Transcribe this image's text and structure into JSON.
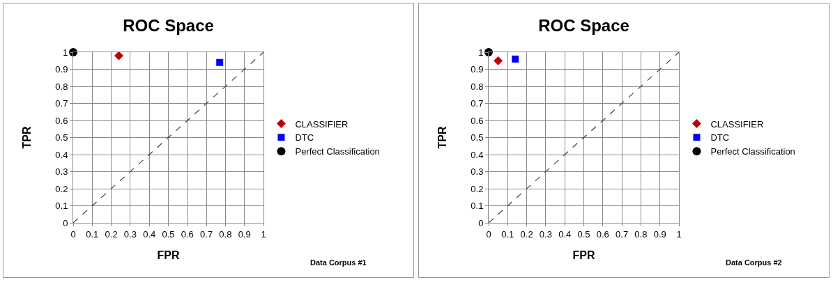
{
  "chart_data": [
    {
      "type": "scatter",
      "title": "ROC Space",
      "xlabel": "FPR",
      "ylabel": "TPR",
      "xlim": [
        0,
        1
      ],
      "ylim": [
        0,
        1
      ],
      "xticks": [
        0,
        0.1,
        0.2,
        0.3,
        0.4,
        0.5,
        0.6,
        0.7,
        0.8,
        0.9,
        1
      ],
      "yticks": [
        0,
        0.1,
        0.2,
        0.3,
        0.4,
        0.5,
        0.6,
        0.7,
        0.8,
        0.9,
        1
      ],
      "grid": true,
      "legend": "right",
      "annotations": [
        "Data Corpus #1"
      ],
      "series": [
        {
          "name": "CLASSIFIER",
          "color": "#c00000",
          "marker": "diamond",
          "x": [
            0.24
          ],
          "values": [
            0.98
          ]
        },
        {
          "name": "DTC",
          "color": "#0000ff",
          "marker": "square",
          "x": [
            0.77
          ],
          "values": [
            0.94
          ]
        },
        {
          "name": "Perfect Classification",
          "color": "#000000",
          "marker": "circle",
          "x": [
            0
          ],
          "values": [
            1
          ]
        },
        {
          "type": "line",
          "color": "#404040",
          "marker": "none",
          "line_style": "dashed",
          "x": [
            0,
            1
          ],
          "values": [
            0,
            1
          ]
        }
      ]
    },
    {
      "type": "scatter",
      "title": "ROC Space",
      "xlabel": "FPR",
      "ylabel": "TPR",
      "xlim": [
        0,
        1
      ],
      "ylim": [
        0,
        1
      ],
      "xticks": [
        0,
        0.1,
        0.2,
        0.3,
        0.4,
        0.5,
        0.6,
        0.7,
        0.8,
        0.9,
        1
      ],
      "yticks": [
        0,
        0.1,
        0.2,
        0.3,
        0.4,
        0.5,
        0.6,
        0.7,
        0.8,
        0.9,
        1
      ],
      "grid": true,
      "legend": "right",
      "annotations": [
        "Data Corpus #2"
      ],
      "series": [
        {
          "name": "CLASSIFIER",
          "color": "#c00000",
          "marker": "diamond",
          "x": [
            0.05
          ],
          "values": [
            0.95
          ]
        },
        {
          "name": "DTC",
          "color": "#0000ff",
          "marker": "square",
          "x": [
            0.14
          ],
          "values": [
            0.96
          ]
        },
        {
          "name": "Perfect Classification",
          "color": "#000000",
          "marker": "circle",
          "x": [
            0
          ],
          "values": [
            1
          ]
        },
        {
          "type": "line",
          "color": "#404040",
          "marker": "none",
          "line_style": "dashed",
          "x": [
            0,
            1
          ],
          "values": [
            0,
            1
          ]
        }
      ]
    }
  ]
}
